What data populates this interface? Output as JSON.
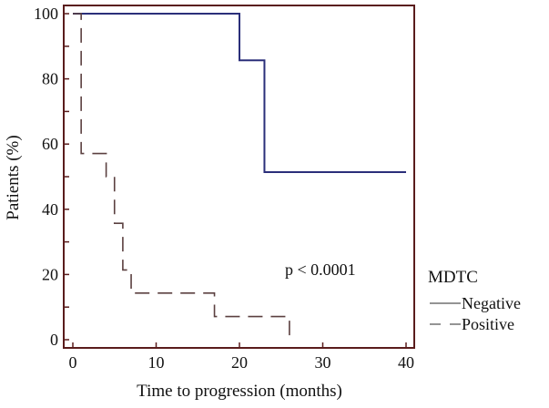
{
  "chart_data": {
    "type": "line",
    "subtype": "kaplan-meier step",
    "xlabel": "Time to progression (months)",
    "ylabel": "Patients (%)",
    "xlim": [
      0,
      40
    ],
    "ylim": [
      0,
      100
    ],
    "xticks": [
      0,
      10,
      20,
      30,
      40
    ],
    "yticks": [
      0,
      20,
      40,
      60,
      80,
      100
    ],
    "annotation": "p < 0.0001",
    "legend_title": "MDTC",
    "legend_position": "bottom-right outside",
    "series": [
      {
        "name": "Negative",
        "style": "solid",
        "color": "#2b2f7a",
        "x": [
          0,
          20,
          23,
          40
        ],
        "y": [
          100,
          85.7,
          51.4,
          51.4
        ]
      },
      {
        "name": "Positive",
        "style": "dashed",
        "color": "#5b4040",
        "x": [
          0,
          1,
          4,
          5,
          6,
          7,
          17,
          26
        ],
        "y": [
          100,
          57.1,
          50,
          35.7,
          21.4,
          14.3,
          7.1,
          0
        ]
      }
    ],
    "axis_color": "#5a1c1c"
  }
}
